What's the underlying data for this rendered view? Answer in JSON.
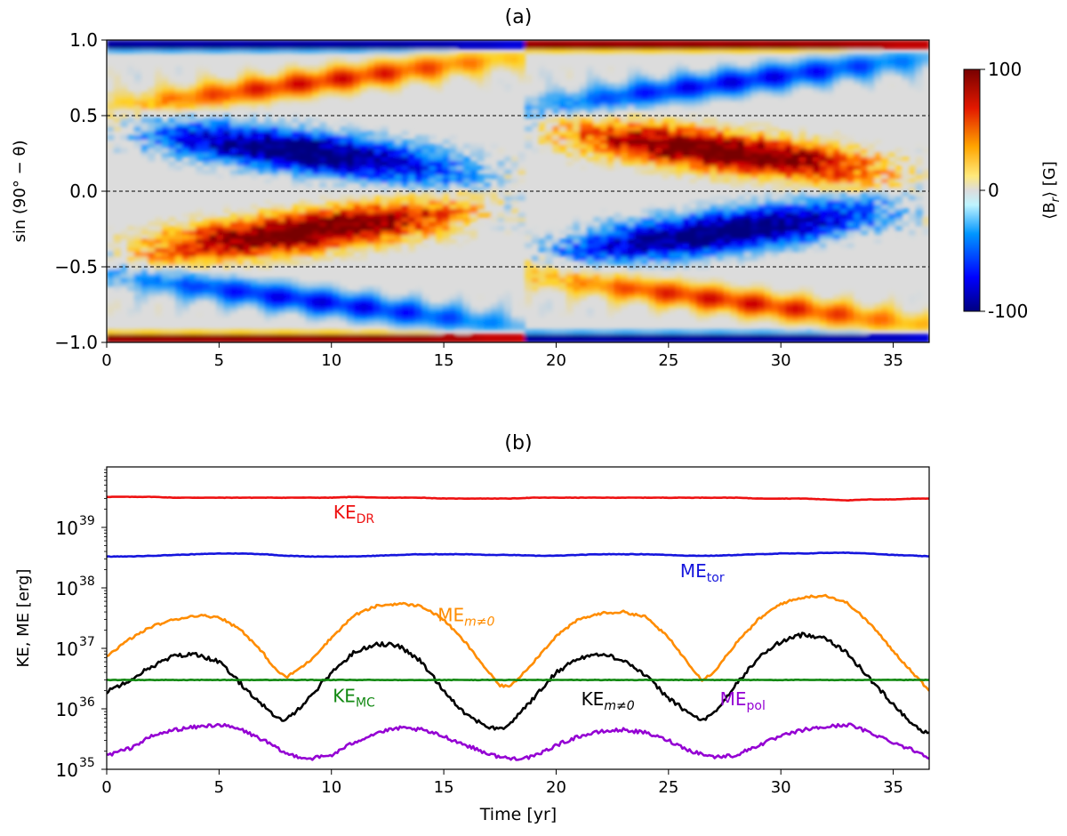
{
  "chart_data": [
    {
      "type": "heatmap",
      "panel_label": "(a)",
      "ylabel": "sin (90° − θ)",
      "xlabel": "",
      "xlim": [
        0,
        36.6
      ],
      "ylim": [
        -1.0,
        1.0
      ],
      "xticks": [
        0,
        5,
        10,
        15,
        20,
        25,
        30,
        35
      ],
      "xtick_labels": [
        "0",
        "5",
        "10",
        "15",
        "20",
        "25",
        "30",
        "35"
      ],
      "yticks": [
        1.0,
        0.5,
        0.0,
        -0.5,
        -1.0
      ],
      "ytick_labels": [
        "1.0",
        "0.5",
        "0.0",
        "−0.5",
        "−1.0"
      ],
      "reference_lines_y": [
        0.5,
        0.0,
        -0.5
      ],
      "colorbar": {
        "label": "⟨B_r⟩ [G]",
        "label_main": "⟨B",
        "label_sub": "r",
        "label_unit": "⟩ [G]",
        "range": [
          -100,
          100
        ],
        "ticks": [
          100,
          0,
          -100
        ],
        "tick_labels": [
          "100",
          "0",
          "-100"
        ],
        "colors": [
          "#00007f",
          "#0000ff",
          "#0096ff",
          "#dcdcdc",
          "#ffd21e",
          "#ff6400",
          "#d20000",
          "#780000"
        ]
      },
      "cycle_period_yr": 18.6
    },
    {
      "type": "line",
      "panel_label": "(b)",
      "xlabel": "Time [yr]",
      "ylabel": "KE, ME [erg]",
      "yscale": "log",
      "xlim": [
        0,
        36.6
      ],
      "ylim": [
        1e+35,
        1e+40
      ],
      "xticks": [
        0,
        5,
        10,
        15,
        20,
        25,
        30,
        35
      ],
      "xtick_labels": [
        "0",
        "5",
        "10",
        "15",
        "20",
        "25",
        "30",
        "35"
      ],
      "yticks": [
        35,
        36,
        37,
        38,
        39
      ],
      "ytick_base": "10",
      "x": [
        0,
        1,
        2,
        3,
        4,
        5,
        6,
        7,
        7.5,
        8,
        9,
        10,
        11,
        12,
        13,
        14,
        15,
        16,
        17,
        17.5,
        18,
        19,
        20,
        21,
        22,
        23,
        24,
        25,
        26,
        26.5,
        27,
        28,
        29,
        30,
        31,
        32,
        33,
        34,
        35,
        36,
        36.6
      ],
      "series": [
        {
          "name": "KE_DR",
          "label_main": "KE",
          "label_sub": "DR",
          "label_italic": false,
          "color": "#ee1111",
          "values": [
            3.2e+39,
            3.2e+39,
            3.2e+39,
            3.1e+39,
            3.1e+39,
            3.1e+39,
            3.1e+39,
            3.1e+39,
            3.1e+39,
            3.1e+39,
            3.1e+39,
            3.1e+39,
            3.2e+39,
            3.1e+39,
            3.1e+39,
            3.1e+39,
            3e+39,
            3e+39,
            3e+39,
            3e+39,
            3e+39,
            3.1e+39,
            3.1e+39,
            3.1e+39,
            3.1e+39,
            3.1e+39,
            3.1e+39,
            3.1e+39,
            3.1e+39,
            3.1e+39,
            3.1e+39,
            3.1e+39,
            3e+39,
            3e+39,
            3e+39,
            2.9e+39,
            2.8e+39,
            2.9e+39,
            2.9e+39,
            3e+39,
            3e+39
          ]
        },
        {
          "name": "ME_tor",
          "label_main": "ME",
          "label_sub": "tor",
          "label_italic": false,
          "color": "#1515dd",
          "values": [
            3.3e+38,
            3.3e+38,
            3.4e+38,
            3.5e+38,
            3.6e+38,
            3.7e+38,
            3.7e+38,
            3.6e+38,
            3.5e+38,
            3.4e+38,
            3.3e+38,
            3.3e+38,
            3.3e+38,
            3.4e+38,
            3.5e+38,
            3.6e+38,
            3.6e+38,
            3.6e+38,
            3.5e+38,
            3.5e+38,
            3.5e+38,
            3.4e+38,
            3.4e+38,
            3.5e+38,
            3.6e+38,
            3.6e+38,
            3.6e+38,
            3.5e+38,
            3.4e+38,
            3.4e+38,
            3.4e+38,
            3.5e+38,
            3.6e+38,
            3.7e+38,
            3.7e+38,
            3.8e+38,
            3.8e+38,
            3.7e+38,
            3.5e+38,
            3.4e+38,
            3.3e+38
          ]
        },
        {
          "name": "ME_m≠0",
          "label_main": "ME",
          "label_sub": "m≠0",
          "label_italic": true,
          "color": "#ff8c00",
          "values": [
            7.5e+36,
            1.4e+37,
            2.3e+37,
            3e+37,
            3.5e+37,
            3.3e+37,
            2e+37,
            8e+36,
            4.5e+36,
            3.3e+36,
            6e+36,
            1.5e+37,
            3.5e+37,
            5e+37,
            5.5e+37,
            5e+37,
            3e+37,
            1.2e+37,
            4e+36,
            2.4e+36,
            2.4e+36,
            6e+36,
            1.6e+37,
            3e+37,
            3.8e+37,
            4e+37,
            3.3e+37,
            1.5e+37,
            5e+36,
            3e+36,
            4e+36,
            1.2e+37,
            3e+37,
            5.5e+37,
            7e+37,
            7.5e+37,
            5.5e+37,
            2.5e+37,
            9e+36,
            3.5e+36,
            2e+36
          ]
        },
        {
          "name": "KE_m≠0",
          "label_main": "KE",
          "label_sub": "m≠0",
          "label_italic": true,
          "color": "#000000",
          "values": [
            1.9e+36,
            3e+36,
            5e+36,
            7.5e+36,
            8e+36,
            6e+36,
            2.5e+36,
            1.1e+36,
            7e+35,
            6.5e+35,
            1.5e+36,
            4e+36,
            8.5e+36,
            1.2e+37,
            1.1e+37,
            6e+36,
            2e+36,
            8e+35,
            5e+35,
            4.5e+35,
            6e+35,
            1.5e+36,
            4e+36,
            7e+36,
            8e+36,
            6.5e+36,
            3.5e+36,
            1.5e+36,
            8e+35,
            6.5e+35,
            8e+35,
            2.5e+36,
            7e+36,
            1.3e+37,
            1.7e+37,
            1.5e+37,
            8e+36,
            3e+36,
            1.2e+36,
            5e+35,
            3.8e+35
          ]
        },
        {
          "name": "KE_MC",
          "label_main": "KE",
          "label_sub": "MC",
          "label_italic": false,
          "color": "#118811",
          "values": [
            3e+36,
            3e+36,
            3e+36,
            3e+36,
            3e+36,
            3e+36,
            3e+36,
            3e+36,
            3e+36,
            3e+36,
            3e+36,
            3e+36,
            3e+36,
            3e+36,
            3e+36,
            3e+36,
            3e+36,
            3e+36,
            3e+36,
            3e+36,
            3e+36,
            3e+36,
            3e+36,
            3e+36,
            3e+36,
            3e+36,
            3e+36,
            3e+36,
            3e+36,
            3e+36,
            3e+36,
            3e+36,
            3e+36,
            3e+36,
            3e+36,
            3e+36,
            3e+36,
            3e+36,
            3e+36,
            3e+36,
            3e+36
          ]
        },
        {
          "name": "ME_pol",
          "label_main": "ME",
          "label_sub": "pol",
          "label_italic": false,
          "color": "#9400d3",
          "values": [
            1.7e+35,
            2.2e+35,
            3.5e+35,
            4.5e+35,
            5e+35,
            5.5e+35,
            4.5e+35,
            3e+35,
            2.3e+35,
            1.8e+35,
            1.5e+35,
            1.7e+35,
            2.8e+35,
            4e+35,
            4.8e+35,
            4.5e+35,
            3.5e+35,
            2.5e+35,
            1.8e+35,
            1.6e+35,
            1.5e+35,
            1.6e+35,
            2.5e+35,
            3.5e+35,
            4.2e+35,
            4.5e+35,
            4e+35,
            3e+35,
            2e+35,
            1.8e+35,
            1.6e+35,
            1.7e+35,
            2.5e+35,
            3.5e+35,
            4.5e+35,
            5e+35,
            5.5e+35,
            4e+35,
            2.8e+35,
            2e+35,
            1.6e+35
          ]
        }
      ],
      "series_label_anchors": [
        {
          "name": "KE_DR",
          "x": 11.0,
          "y": 1.4e+39
        },
        {
          "name": "ME_tor",
          "x": 26.5,
          "y": 1.5e+38
        },
        {
          "name": "ME_m≠0",
          "x": 16.0,
          "y": 2.8e+37
        },
        {
          "name": "KE_MC",
          "x": 11.0,
          "y": 1.3e+36
        },
        {
          "name": "KE_m≠0",
          "x": 22.3,
          "y": 1.15e+36
        },
        {
          "name": "ME_pol",
          "x": 28.3,
          "y": 1.15e+36
        }
      ]
    }
  ]
}
